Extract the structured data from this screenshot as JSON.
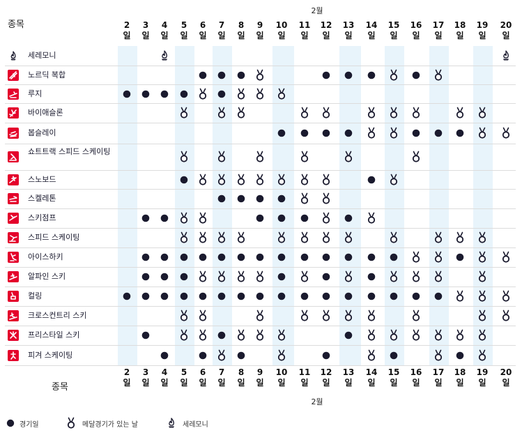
{
  "header": {
    "corner_label": "종목",
    "month_label": "2월",
    "day_suffix": "일"
  },
  "days": [
    2,
    3,
    4,
    5,
    6,
    7,
    8,
    9,
    10,
    11,
    12,
    13,
    14,
    15,
    16,
    17,
    18,
    19,
    20
  ],
  "footer": {
    "corner_label": "종목",
    "month_label": "2월"
  },
  "legend": {
    "competition": "경기일",
    "medal": "메달경기가 있는 날",
    "ceremony": "세레모니"
  },
  "colors": {
    "dot": "#1a1a2e",
    "stripe": "#e8f4fb",
    "sport_icon_bg": "#e4002b",
    "ceremony_icon": "#1a1a2e"
  },
  "sports": [
    {
      "name": "세레모니",
      "icon": "ceremony-flame-icon",
      "schedule": [
        "",
        "",
        "C",
        "",
        "",
        "",
        "",
        "",
        "",
        "",
        "",
        "",
        "",
        "",
        "",
        "",
        "",
        "",
        "C"
      ]
    },
    {
      "name": "노르딕 복합",
      "icon": "nordic-combined-icon",
      "schedule": [
        "",
        "",
        "",
        "",
        "D",
        "D",
        "D",
        "M",
        "",
        "",
        "D",
        "D",
        "D",
        "M",
        "D",
        "M",
        "",
        "",
        ""
      ]
    },
    {
      "name": "루지",
      "icon": "luge-icon",
      "schedule": [
        "D",
        "D",
        "D",
        "D",
        "M",
        "D",
        "M",
        "M",
        "M",
        "",
        "",
        "",
        "",
        "",
        "",
        "",
        "",
        "",
        ""
      ]
    },
    {
      "name": "바이애슬론",
      "icon": "biathlon-icon",
      "schedule": [
        "",
        "",
        "",
        "M",
        "",
        "M",
        "M",
        "",
        "",
        "M",
        "M",
        "",
        "M",
        "M",
        "M",
        "",
        "M",
        "M",
        ""
      ]
    },
    {
      "name": "봅슬레이",
      "icon": "bobsleigh-icon",
      "schedule": [
        "",
        "",
        "",
        "",
        "",
        "",
        "",
        "",
        "D",
        "D",
        "D",
        "D",
        "M",
        "M",
        "D",
        "D",
        "D",
        "M",
        "M"
      ]
    },
    {
      "name": "쇼트트랙 스피드 스케이팅",
      "icon": "short-track-icon",
      "schedule": [
        "",
        "",
        "",
        "M",
        "",
        "M",
        "",
        "M",
        "",
        "M",
        "",
        "M",
        "",
        "",
        "M",
        "",
        "",
        "",
        ""
      ]
    },
    {
      "name": "스노보드",
      "icon": "snowboard-icon",
      "schedule": [
        "",
        "",
        "",
        "D",
        "M",
        "M",
        "M",
        "M",
        "M",
        "M",
        "M",
        "",
        "D",
        "M",
        "",
        "",
        "",
        "",
        ""
      ]
    },
    {
      "name": "스켈레톤",
      "icon": "skeleton-icon",
      "schedule": [
        "",
        "",
        "",
        "",
        "",
        "D",
        "D",
        "D",
        "D",
        "M",
        "M",
        "",
        "",
        "",
        "",
        "",
        "",
        "",
        ""
      ]
    },
    {
      "name": "스키점프",
      "icon": "ski-jumping-icon",
      "schedule": [
        "",
        "D",
        "D",
        "M",
        "M",
        "",
        "",
        "D",
        "D",
        "D",
        "M",
        "D",
        "M",
        "",
        "",
        "",
        "",
        "",
        ""
      ]
    },
    {
      "name": "스피드 스케이팅",
      "icon": "speed-skating-icon",
      "schedule": [
        "",
        "",
        "",
        "M",
        "M",
        "M",
        "M",
        "",
        "M",
        "M",
        "M",
        "M",
        "",
        "M",
        "",
        "M",
        "M",
        "M",
        ""
      ]
    },
    {
      "name": "아이스하키",
      "icon": "ice-hockey-icon",
      "schedule": [
        "",
        "D",
        "D",
        "D",
        "D",
        "D",
        "D",
        "D",
        "D",
        "D",
        "D",
        "D",
        "D",
        "D",
        "M",
        "M",
        "D",
        "M",
        "M"
      ]
    },
    {
      "name": "알파인 스키",
      "icon": "alpine-skiing-icon",
      "schedule": [
        "",
        "D",
        "D",
        "D",
        "M",
        "M",
        "M",
        "M",
        "D",
        "M",
        "D",
        "M",
        "D",
        "M",
        "M",
        "M",
        "",
        "M",
        ""
      ]
    },
    {
      "name": "컬링",
      "icon": "curling-icon",
      "schedule": [
        "D",
        "D",
        "D",
        "D",
        "D",
        "D",
        "D",
        "D",
        "D",
        "D",
        "D",
        "D",
        "D",
        "D",
        "D",
        "D",
        "M",
        "M",
        "M"
      ]
    },
    {
      "name": "크로스컨트리 스키",
      "icon": "cross-country-skiing-icon",
      "schedule": [
        "",
        "",
        "",
        "M",
        "M",
        "",
        "",
        "M",
        "",
        "M",
        "M",
        "M",
        "M",
        "",
        "M",
        "",
        "",
        "M",
        "M"
      ]
    },
    {
      "name": "프리스타일 스키",
      "icon": "freestyle-skiing-icon",
      "schedule": [
        "",
        "D",
        "",
        "M",
        "M",
        "D",
        "M",
        "M",
        "M",
        "",
        "",
        "D",
        "M",
        "M",
        "M",
        "M",
        "M",
        "M",
        ""
      ]
    },
    {
      "name": "피겨 스케이팅",
      "icon": "figure-skating-icon",
      "schedule": [
        "",
        "",
        "D",
        "",
        "D",
        "M",
        "D",
        "",
        "M",
        "",
        "D",
        "",
        "M",
        "D",
        "",
        "M",
        "D",
        "M",
        ""
      ]
    }
  ]
}
